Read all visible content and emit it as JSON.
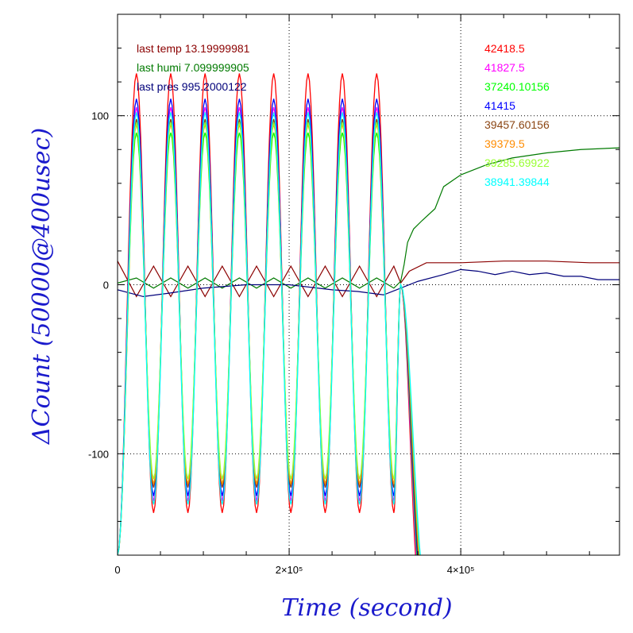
{
  "chart_data": {
    "type": "line",
    "title": "",
    "xlabel": "Time (second)",
    "ylabel": "ΔCount (50000@400usec)",
    "xlim": [
      0,
      585000
    ],
    "ylim": [
      -160,
      160
    ],
    "grid": true,
    "x_ticks": [
      {
        "value": 0,
        "label": "0"
      },
      {
        "value": 200000,
        "label": "2×10⁵"
      },
      {
        "value": 400000,
        "label": "4×10⁵"
      }
    ],
    "y_ticks": [
      {
        "value": 100,
        "label": "100"
      },
      {
        "value": 0,
        "label": "0"
      },
      {
        "value": -100,
        "label": "-100"
      }
    ],
    "env_labels": [
      {
        "text": "last temp 13.19999981",
        "color": "#8b0000"
      },
      {
        "text": "last humi 7.099999905",
        "color": "#007a00"
      },
      {
        "text": "last pres 995.2000122",
        "color": "#00007a"
      }
    ],
    "series": [
      {
        "name": "42418.5",
        "color": "#ff0000",
        "peak": 125,
        "trough": -135
      },
      {
        "name": "41827.5",
        "color": "#ff00ff",
        "peak": 105,
        "trough": -128
      },
      {
        "name": "37240.10156",
        "color": "#00ff00",
        "peak": 90,
        "trough": -118
      },
      {
        "name": "41415",
        "color": "#0000ff",
        "peak": 110,
        "trough": -125
      },
      {
        "name": "39457.60156",
        "color": "#8b4513",
        "peak": 98,
        "trough": -120
      },
      {
        "name": "39379.5",
        "color": "#ff8c00",
        "peak": 95,
        "trough": -118
      },
      {
        "name": "39285.69922",
        "color": "#99ff33",
        "peak": 96,
        "trough": -115
      },
      {
        "name": "38941.39844",
        "color": "#00ffff",
        "peak": 102,
        "trough": -130
      }
    ],
    "oscillation": {
      "peaks_x": [
        22000,
        62000,
        102000,
        142000,
        182000,
        222000,
        262000,
        302000
      ],
      "troughs_x": [
        42000,
        82000,
        122000,
        162000,
        202000,
        242000,
        282000,
        322000
      ],
      "start": {
        "x": 0,
        "y": -160
      },
      "cutoff": {
        "x": 330000,
        "y": 0
      },
      "end_x": 352000
    },
    "environment_curves": [
      {
        "name": "temperature",
        "color": "#8b0000",
        "x": [
          0,
          22000,
          42000,
          62000,
          82000,
          102000,
          122000,
          142000,
          162000,
          182000,
          202000,
          222000,
          242000,
          262000,
          282000,
          302000,
          322000,
          330000,
          340000,
          360000,
          400000,
          450000,
          500000,
          550000,
          585000
        ],
        "y": [
          14,
          -7,
          11,
          -7,
          11,
          -7,
          11,
          -7,
          11,
          -7,
          11,
          -7,
          11,
          -7,
          11,
          -7,
          11,
          1,
          8,
          13,
          13,
          14,
          14,
          13,
          13
        ]
      },
      {
        "name": "humidity",
        "color": "#007a00",
        "x": [
          0,
          22000,
          42000,
          62000,
          82000,
          102000,
          122000,
          142000,
          162000,
          182000,
          202000,
          222000,
          242000,
          262000,
          282000,
          302000,
          322000,
          330000,
          334000,
          338000,
          345000,
          355000,
          370000,
          380000,
          400000,
          430000,
          460000,
          500000,
          540000,
          585000
        ],
        "y": [
          1,
          4,
          -2,
          4,
          -2,
          4,
          -2,
          4,
          -2,
          4,
          -2,
          4,
          -2,
          4,
          -2,
          4,
          -2,
          2,
          12,
          25,
          33,
          38,
          45,
          58,
          65,
          71,
          75,
          78,
          80,
          81
        ]
      },
      {
        "name": "pressure",
        "color": "#00007a",
        "x": [
          0,
          30000,
          60000,
          100000,
          150000,
          200000,
          250000,
          280000,
          310000,
          330000,
          350000,
          380000,
          400000,
          420000,
          440000,
          460000,
          480000,
          500000,
          520000,
          540000,
          560000,
          585000
        ],
        "y": [
          -3,
          -7,
          -5,
          -2,
          0,
          0,
          -3,
          -4,
          -6,
          -2,
          2,
          6,
          9,
          8,
          6,
          8,
          6,
          7,
          5,
          5,
          3,
          3
        ]
      }
    ]
  }
}
